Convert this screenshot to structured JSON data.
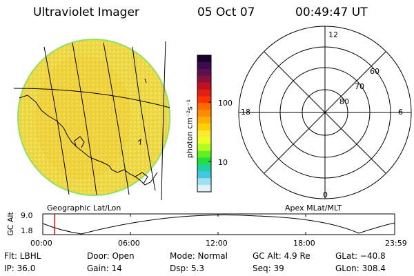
{
  "header": {
    "instrument": "Ultraviolet Imager",
    "date": "05 Oct 07",
    "time": "00:49:47 UT"
  },
  "colorbar": {
    "unit_label": "photon cm⁻²s⁻¹",
    "tick_100": "100",
    "tick_10": "10",
    "colors": [
      "#1a0030",
      "#3a0a4a",
      "#5a1050",
      "#8a1040",
      "#c01020",
      "#e02010",
      "#ff3300",
      "#ff6a00",
      "#ff8c00",
      "#ffb000",
      "#ffd000",
      "#ffe830",
      "#e8ff20",
      "#b0ff20",
      "#60f020",
      "#20e040",
      "#20d0a0",
      "#40c8e0",
      "#a0e0f0",
      "#e0f4f8"
    ]
  },
  "labels": {
    "left_panel": "Geographic Lat/Lon",
    "right_panel": "Apex MLat/MLT"
  },
  "polar": {
    "hour_12": "12",
    "hour_6": "6",
    "hour_18": "18",
    "hour_0": "0",
    "lat_60": "60",
    "lat_70": "70",
    "lat_80": "80"
  },
  "orbit": {
    "ylabel": "GC Alt",
    "y_top": "9.0",
    "y_bottom": "1.8",
    "times": [
      "00:00",
      "06:00",
      "12:00",
      "18:00",
      "23:59"
    ],
    "current_time_fraction": 0.034
  },
  "info": {
    "flt": "Flt: LBHL",
    "door": "Door: Open",
    "mode": "Mode: Normal",
    "gc_alt": "GC Alt: 4.9 Re",
    "glat": "GLat: −40.8",
    "ip": "IP: 36.0",
    "gain": "Gain: 14",
    "dsp": "Dsp:   5.3",
    "seq": "Seq: 39",
    "glon": "GLon: 308.4"
  }
}
